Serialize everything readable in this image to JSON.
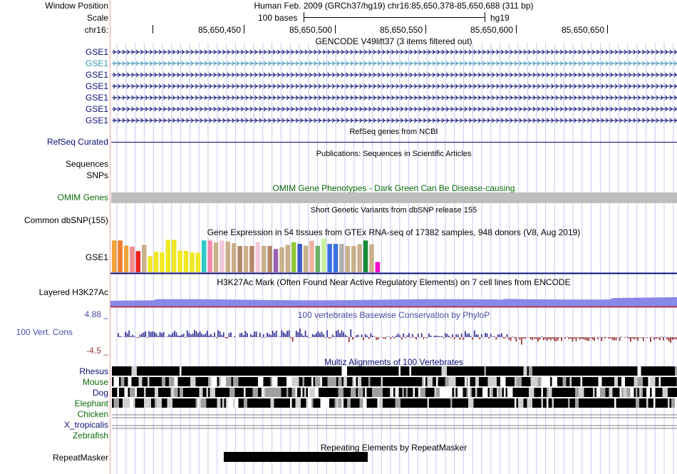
{
  "header": {
    "window_position_label": "Window Position",
    "window_position_value": "Human Feb. 2009 (GRCh37/hg19)   chr16:85,650,378-85,650,688 (311 bp)",
    "scale_label": "Scale",
    "scale_text": "100 bases",
    "assembly": "hg19",
    "chrom_label": "chr16:",
    "ticks": [
      "85,650,450",
      "85,650,500",
      "85,650,550",
      "85,650,600",
      "85,650,650"
    ]
  },
  "tracks": {
    "gencode": {
      "title": "GENCODE V49lift37 (3 items filtered out)",
      "items": [
        "GSE1",
        "GSE1",
        "GSE1",
        "GSE1",
        "GSE1",
        "GSE1",
        "GSE1"
      ]
    },
    "refseq": {
      "title": "RefSeq genes from NCBI",
      "label": "RefSeq Curated"
    },
    "publications": {
      "title": "Publications: Sequences in Scientific Articles",
      "label1": "Sequences",
      "label2": "SNPs"
    },
    "omim": {
      "title": "OMIM Gene Phenotypes - Dark Green Can Be Disease-causing",
      "label": "OMIM Genes"
    },
    "dbsnp": {
      "title": "Short Genetic Variants from dbSNP release 155",
      "label": "Common dbSNP(155)"
    },
    "gtex": {
      "title": "Gene Expression in 54 tissues from GTEx RNA-seq of 17382 samples, 948 donors (V8, Aug 2019)",
      "label": "GSE1",
      "bars": [
        {
          "v": 0.93,
          "c": "#f2a33a"
        },
        {
          "v": 0.93,
          "c": "#f07a2a"
        },
        {
          "v": 0.78,
          "c": "#f2a33a"
        },
        {
          "v": 0.75,
          "c": "#f28a8a"
        },
        {
          "v": 0.62,
          "c": "#ee2020"
        },
        {
          "v": 0.8,
          "c": "#c8b08a"
        },
        {
          "v": 0.47,
          "c": "#f0e823"
        },
        {
          "v": 0.6,
          "c": "#f0e823"
        },
        {
          "v": 0.58,
          "c": "#f0e823"
        },
        {
          "v": 0.95,
          "c": "#f0e823"
        },
        {
          "v": 0.95,
          "c": "#f0e823"
        },
        {
          "v": 0.63,
          "c": "#f0e823"
        },
        {
          "v": 0.63,
          "c": "#f0e823"
        },
        {
          "v": 0.58,
          "c": "#f0e823"
        },
        {
          "v": 0.57,
          "c": "#f0e823"
        },
        {
          "v": 0.93,
          "c": "#2ec8c8"
        },
        {
          "v": 0.93,
          "c": "#f28aa8"
        },
        {
          "v": 0.87,
          "c": "#c8b08a"
        },
        {
          "v": 0.93,
          "c": "#f0c8d8"
        },
        {
          "v": 0.9,
          "c": "#c8b08a"
        },
        {
          "v": 0.85,
          "c": "#c8b08a"
        },
        {
          "v": 0.77,
          "c": "#b0886a"
        },
        {
          "v": 0.77,
          "c": "#c8b08a"
        },
        {
          "v": 0.77,
          "c": "#b0886a"
        },
        {
          "v": 0.88,
          "c": "#f0c8d8"
        },
        {
          "v": 0.77,
          "c": "#c8b08a"
        },
        {
          "v": 0.77,
          "c": "#b0886a"
        },
        {
          "v": 0.68,
          "c": "#9860b0"
        },
        {
          "v": 0.73,
          "c": "#c8b08a"
        },
        {
          "v": 0.8,
          "c": "#c8b08a"
        },
        {
          "v": 0.88,
          "c": "#92c83a"
        },
        {
          "v": 0.83,
          "c": "#3a5ac8"
        },
        {
          "v": 0.78,
          "c": "#c8b08a"
        },
        {
          "v": 0.92,
          "c": "#f0b0a0"
        },
        {
          "v": 0.77,
          "c": "#6ab06a"
        },
        {
          "v": 0.98,
          "c": "#c8f0a0"
        },
        {
          "v": 0.83,
          "c": "#3a70e0"
        },
        {
          "v": 0.83,
          "c": "#3a70e0"
        },
        {
          "v": 0.83,
          "c": "#b0b0b0"
        },
        {
          "v": 0.77,
          "c": "#c8b08a"
        },
        {
          "v": 0.77,
          "c": "#c8b08a"
        },
        {
          "v": 0.82,
          "c": "#c8b08a"
        },
        {
          "v": 0.93,
          "c": "#1a8a3a"
        },
        {
          "v": 0.82,
          "c": "#c8b08a"
        },
        {
          "v": 0.3,
          "c": "#f000d0"
        }
      ]
    },
    "h3k27ac": {
      "title": "H3K27Ac Mark (Often Found Near Active Regulatory Elements) on 7 cell lines from ENCODE",
      "label": "Layered H3K27Ac"
    },
    "phylop": {
      "title": "100 vertebrates Basewise Conservation by PhyloP",
      "label": "100 Vert. Cons",
      "max_label": "4.88 _",
      "min_label": "-4.5 _"
    },
    "multiz": {
      "title": "Multiz Alignments of 100 Vertebrates",
      "species": [
        "Rhesus",
        "Mouse",
        "Dog",
        "Elephant",
        "Chicken",
        "X_tropicalis",
        "Zebrafish"
      ]
    },
    "repeatmasker": {
      "title": "Repeating Elements by RepeatMasker",
      "label": "RepeatMasker"
    }
  },
  "colors": {
    "guide_line": "#c8c8f0",
    "left_divider": "#f0a0a0",
    "gene_navy": "#0c0c78",
    "omim_gray": "#bebebe",
    "h3k27ac_fill": "#8888e8",
    "h3k27ac_top": "#b0b0f0",
    "h3k27ac_line": "#aa3a50",
    "phylop_pos": "#3a3a9a",
    "phylop_neg": "#9a3a3a"
  }
}
